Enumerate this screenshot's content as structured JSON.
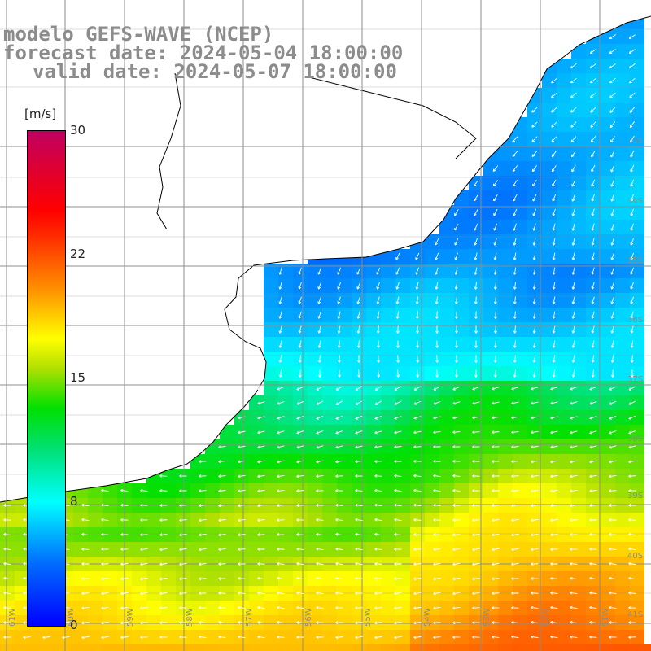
{
  "title": {
    "line1": "modelo GEFS-WAVE (NCEP)",
    "line2": "forecast date: 2024-05-04 18:00:00",
    "line3": "valid date: 2024-05-07 18:00:00"
  },
  "colorbar": {
    "unit": "[m/s]",
    "ticks": [
      "30",
      "22",
      "15",
      "8",
      "0"
    ],
    "tick_values": [
      30,
      22,
      15,
      8,
      0
    ],
    "colors": [
      "#0000ff",
      "#0070ff",
      "#00ffff",
      "#00e000",
      "#ffff00",
      "#ff9000",
      "#ff0000",
      "#c00060"
    ]
  },
  "map": {
    "lat_labels": [
      "33S",
      "34S",
      "35S",
      "36S",
      "37S",
      "38S",
      "39S",
      "40S",
      "41S"
    ],
    "lon_labels": [
      "61W",
      "60W",
      "59W",
      "58W",
      "57W",
      "56W",
      "55W",
      "54W",
      "53W",
      "52W",
      "51W"
    ],
    "land_color": "#ffffff",
    "grid_color": "#8c8c8c",
    "arrow_color": "#ffffff"
  }
}
